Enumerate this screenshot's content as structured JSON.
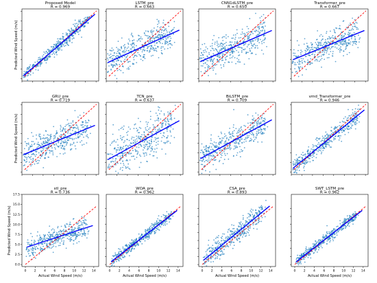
{
  "figure": {
    "rows": 3,
    "cols": 4
  },
  "colors": {
    "points": "#2e86c1",
    "fit_line": "#0000ff",
    "ideal_line": "#ff0000",
    "axes": "#000000"
  },
  "chart_data": [
    {
      "type": "scatter",
      "title": "Proposed Model",
      "subtitle": "R = 0.969",
      "xlabel": "",
      "ylabel": "Predicted Wind Speed (m/s)",
      "xlim": [
        0,
        14.5
      ],
      "ylim": [
        -0.5,
        14.5
      ],
      "xticks": [],
      "yticks": [],
      "r": 0.969,
      "fit": {
        "slope": 0.95,
        "intercept": 0.3
      },
      "spread": 0.7,
      "show_xlabel": false,
      "show_xticks": false,
      "show_ylabel": true,
      "show_yticks": false,
      "points": []
    },
    {
      "type": "scatter",
      "title": "LSTM_pre",
      "subtitle": "R = 0.663",
      "xlabel": "",
      "ylabel": "",
      "xlim": [
        0,
        14.5
      ],
      "ylim": [
        -0.5,
        14.5
      ],
      "xticks": [],
      "yticks": [],
      "r": 0.663,
      "fit": {
        "slope": 0.5,
        "intercept": 3.2
      },
      "spread": 1.6,
      "show_xlabel": false,
      "show_xticks": false,
      "show_ylabel": false,
      "show_yticks": false,
      "points": []
    },
    {
      "type": "scatter",
      "title": "CNN1dLSTM_pre",
      "subtitle": "R = 0.650",
      "xlabel": "",
      "ylabel": "",
      "xlim": [
        0,
        14.5
      ],
      "ylim": [
        -0.5,
        14.5
      ],
      "xticks": [],
      "yticks": [],
      "r": 0.65,
      "fit": {
        "slope": 0.48,
        "intercept": 3.4
      },
      "spread": 1.6,
      "show_xlabel": false,
      "show_xticks": false,
      "show_ylabel": false,
      "show_yticks": false,
      "points": []
    },
    {
      "type": "scatter",
      "title": "Transformer_pre",
      "subtitle": "R = 0.667",
      "xlabel": "",
      "ylabel": "",
      "xlim": [
        0,
        14.5
      ],
      "ylim": [
        -0.5,
        14.5
      ],
      "xticks": [],
      "yticks": [],
      "r": 0.667,
      "fit": {
        "slope": 0.45,
        "intercept": 3.8
      },
      "spread": 1.5,
      "show_xlabel": false,
      "show_xticks": false,
      "show_ylabel": false,
      "show_yticks": false,
      "points": []
    },
    {
      "type": "scatter",
      "title": "GRU_pre",
      "subtitle": "R = 0.719",
      "xlabel": "",
      "ylabel": "Predicted Wind Speed (m/s)",
      "xlim": [
        0,
        14.5
      ],
      "ylim": [
        -0.5,
        14.5
      ],
      "xticks": [],
      "yticks": [],
      "r": 0.719,
      "fit": {
        "slope": 0.45,
        "intercept": 3.5
      },
      "spread": 1.5,
      "show_xlabel": false,
      "show_xticks": false,
      "show_ylabel": true,
      "show_yticks": false,
      "points": []
    },
    {
      "type": "scatter",
      "title": "TCN_pre",
      "subtitle": "R = 0.637",
      "xlabel": "",
      "ylabel": "",
      "xlim": [
        0,
        14.5
      ],
      "ylim": [
        -0.5,
        14.5
      ],
      "xticks": [],
      "yticks": [],
      "r": 0.637,
      "fit": {
        "slope": 0.6,
        "intercept": 2.4
      },
      "spread": 2.2,
      "show_xlabel": false,
      "show_xticks": false,
      "show_ylabel": false,
      "show_yticks": false,
      "points": []
    },
    {
      "type": "scatter",
      "title": "BiLSTM_pre",
      "subtitle": "R = 0.709",
      "xlabel": "",
      "ylabel": "",
      "xlim": [
        0,
        14.5
      ],
      "ylim": [
        -0.5,
        14.5
      ],
      "xticks": [],
      "yticks": [],
      "r": 0.709,
      "fit": {
        "slope": 0.6,
        "intercept": 2.6
      },
      "spread": 1.5,
      "show_xlabel": false,
      "show_xticks": false,
      "show_ylabel": false,
      "show_yticks": false,
      "points": []
    },
    {
      "type": "scatter",
      "title": "vmd_Transformer_pre",
      "subtitle": "R = 0.946",
      "xlabel": "",
      "ylabel": "",
      "xlim": [
        0,
        14.5
      ],
      "ylim": [
        -0.5,
        14.5
      ],
      "xticks": [],
      "yticks": [],
      "r": 0.946,
      "fit": {
        "slope": 0.9,
        "intercept": 0.5
      },
      "spread": 0.9,
      "show_xlabel": false,
      "show_xticks": false,
      "show_ylabel": false,
      "show_yticks": false,
      "points": []
    },
    {
      "type": "scatter",
      "title": "stl_pre",
      "subtitle": "R = 0.736",
      "xlabel": "Actual Wind Speed (m/s)",
      "ylabel": "Predicted Wind Speed (m/s)",
      "xlim": [
        -0.7,
        15
      ],
      "ylim": [
        -0.5,
        17.5
      ],
      "xticks": [
        0,
        2,
        4,
        6,
        8,
        10,
        12,
        14
      ],
      "yticks": [
        0.0,
        2.5,
        5.0,
        7.5,
        10.0,
        12.5,
        15.0,
        17.5
      ],
      "r": 0.736,
      "fit": {
        "slope": 0.4,
        "intercept": 4.2
      },
      "spread": 1.3,
      "show_xlabel": true,
      "show_xticks": true,
      "show_ylabel": true,
      "show_yticks": true,
      "points": []
    },
    {
      "type": "scatter",
      "title": "WOA_pre",
      "subtitle": "R = 0.962",
      "xlabel": "Actual Wind Speed (m/s)",
      "ylabel": "",
      "xlim": [
        -0.7,
        15
      ],
      "ylim": [
        -0.5,
        17.5
      ],
      "xticks": [
        0,
        2,
        4,
        6,
        8,
        10,
        12,
        14
      ],
      "yticks": [],
      "r": 0.962,
      "fit": {
        "slope": 0.95,
        "intercept": 0.4
      },
      "spread": 0.7,
      "show_xlabel": true,
      "show_xticks": true,
      "show_ylabel": false,
      "show_yticks": false,
      "points": []
    },
    {
      "type": "scatter",
      "title": "CSA_pre",
      "subtitle": "R = 0.893",
      "xlabel": "Actual Wind Speed (m/s)",
      "ylabel": "",
      "xlim": [
        -0.7,
        15
      ],
      "ylim": [
        -0.5,
        17.5
      ],
      "xticks": [
        0,
        2,
        4,
        6,
        8,
        10,
        12,
        14
      ],
      "yticks": [],
      "r": 0.893,
      "fit": {
        "slope": 1.0,
        "intercept": 0.8
      },
      "spread": 1.3,
      "show_xlabel": true,
      "show_xticks": true,
      "show_ylabel": false,
      "show_yticks": false,
      "points": []
    },
    {
      "type": "scatter",
      "title": "SWT_LSTM_pre",
      "subtitle": "R = 0.962",
      "xlabel": "Actual Wind Speed (m/s)",
      "ylabel": "",
      "xlim": [
        -0.7,
        15
      ],
      "ylim": [
        -0.5,
        17.5
      ],
      "xticks": [
        0,
        2,
        4,
        6,
        8,
        10,
        12,
        14
      ],
      "yticks": [],
      "r": 0.962,
      "fit": {
        "slope": 0.95,
        "intercept": 0.4
      },
      "spread": 0.7,
      "show_xlabel": true,
      "show_xticks": true,
      "show_ylabel": false,
      "show_yticks": false,
      "points": []
    }
  ]
}
